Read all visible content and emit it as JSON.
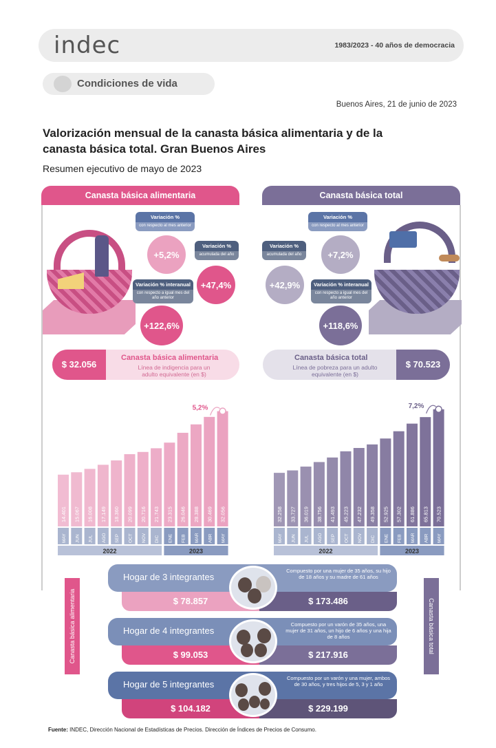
{
  "header": {
    "logo": "indec",
    "anniversary": "1983/2023 - 40 años de democracia",
    "section": "Condiciones de vida",
    "date": "Buenos Aires, 21 de junio de 2023",
    "title": "Valorización mensual de la canasta básica alimentaria y de la canasta básica total. Gran Buenos Aires",
    "subtitle": "Resumen ejecutivo de mayo de 2023"
  },
  "cba": {
    "tab": "Canasta básica alimentaria",
    "var_mensual_title": "Variación %",
    "var_mensual_desc": "con respecto al mes anterior",
    "var_mensual": "+5,2%",
    "var_acum_title": "Variación %",
    "var_acum_desc": "acumulada del año",
    "var_acum": "+47,4%",
    "var_inter_title": "Variación % interanual",
    "var_inter_desc": "con respecto a igual mes del año anterior",
    "var_inter": "+122,6%",
    "price": "$ 32.056",
    "price_title": "Canasta básica alimentaria",
    "price_desc": "Línea de indigencia para un adulto equivalente (en $)",
    "side_label": "Canasta básica alimentaria"
  },
  "cbt": {
    "tab": "Canasta básica total",
    "var_mensual_title": "Variación %",
    "var_mensual_desc": "con respecto al mes anterior",
    "var_mensual": "+7,2%",
    "var_acum_title": "Variación %",
    "var_acum_desc": "acumulada del año",
    "var_acum": "+42,9%",
    "var_inter_title": "Variación % interanual",
    "var_inter_desc": "con respecto a igual mes del año anterior",
    "var_inter": "+118,6%",
    "price": "$ 70.523",
    "price_title": "Canasta básica total",
    "price_desc": "Línea de pobreza para un adulto equivalente (en $)",
    "side_label": "Canasta básica total"
  },
  "chart_data": [
    {
      "type": "bar",
      "categories": [
        "MAY",
        "JUN",
        "JUL",
        "AGO",
        "SEP",
        "OCT",
        "NOV",
        "DIC",
        "ENE",
        "FEB",
        "MAR",
        "ABR",
        "MAY"
      ],
      "year_groups": [
        {
          "label": "2022",
          "count": 8
        },
        {
          "label": "2023",
          "count": 5
        }
      ],
      "values": [
        14401,
        15067,
        16008,
        17149,
        18360,
        20099,
        20716,
        21743,
        23315,
        26046,
        28388,
        30469,
        32056
      ],
      "value_labels": [
        "14.401",
        "15.067",
        "16.008",
        "17.149",
        "18.360",
        "20.099",
        "20.716",
        "21.743",
        "23.315",
        "26.046",
        "28.388",
        "30.469",
        "32.056"
      ],
      "annotation": "5,2%",
      "color": "#eba2c0"
    },
    {
      "type": "bar",
      "categories": [
        "MAY",
        "JUN",
        "JUL",
        "AGO",
        "SEP",
        "OCT",
        "NOV",
        "DIC",
        "ENE",
        "FEB",
        "MAR",
        "ABR",
        "MAY"
      ],
      "year_groups": [
        {
          "label": "2022",
          "count": 8
        },
        {
          "label": "2023",
          "count": 5
        }
      ],
      "values": [
        32258,
        33727,
        36019,
        38756,
        41493,
        45223,
        47232,
        49358,
        52925,
        57302,
        61886,
        65813,
        70523
      ],
      "value_labels": [
        "32.258",
        "33.727",
        "36.019",
        "38.756",
        "41.493",
        "45.223",
        "47.232",
        "49.358",
        "52.925",
        "57.302",
        "61.886",
        "65.813",
        "70.523"
      ],
      "annotation": "7,2%",
      "color": "#7b6f98"
    }
  ],
  "households": [
    {
      "name": "Hogar de 3 integrantes",
      "desc": "Compuesto por una mujer de 35 años, su hijo de 18 años y su madre de 61 años",
      "cba": "$ 78.857",
      "cbt": "$ 173.486"
    },
    {
      "name": "Hogar de 4 integrantes",
      "desc": "Compuesto por un varón de 35 años, una mujer de 31 años, un hijo de 6 años y una hija de 8 años",
      "cba": "$ 99.053",
      "cbt": "$ 217.916"
    },
    {
      "name": "Hogar de 5 integrantes",
      "desc": "Compuesto por un varón y una mujer, ambos de 30 años, y tres hijos de 5, 3 y 1 año",
      "cba": "$ 104.182",
      "cbt": "$ 229.199"
    }
  ],
  "source": {
    "label": "Fuente:",
    "text": "INDEC, Dirección Nacional de Estadísticas de Precios. Dirección de Índices de Precios de Consumo."
  }
}
